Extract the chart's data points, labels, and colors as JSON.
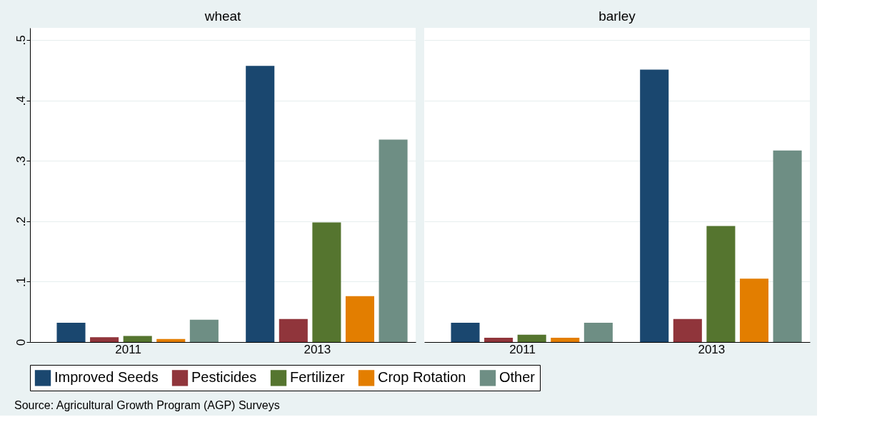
{
  "chart_data": [
    {
      "type": "bar",
      "title": "wheat",
      "categories": [
        "2011",
        "2013"
      ],
      "ylim": [
        0,
        0.52
      ],
      "yticks": [
        0,
        {
          "value": 0.1,
          "label": ".1"
        },
        {
          "value": 0.2,
          "label": ".2"
        },
        {
          "value": 0.3,
          "label": ".3"
        },
        {
          "value": 0.4,
          "label": ".4"
        },
        {
          "value": 0.5,
          "label": ".5"
        }
      ],
      "grid": "y",
      "legend": "bottom",
      "annotations": [
        "Source: Agricultural Growth Program (AGP) Surveys"
      ],
      "series": [
        {
          "name": "Improved Seeds",
          "color": "#1a476f",
          "values": [
            0.032,
            0.457
          ]
        },
        {
          "name": "Pesticides",
          "color": "#90353b",
          "values": [
            0.008,
            0.038
          ]
        },
        {
          "name": "Fertilizer",
          "color": "#55752f",
          "values": [
            0.01,
            0.198
          ]
        },
        {
          "name": "Crop Rotation",
          "color": "#e37e00",
          "values": [
            0.005,
            0.076
          ]
        },
        {
          "name": "Other",
          "color": "#6e8e84",
          "values": [
            0.037,
            0.335
          ]
        }
      ]
    },
    {
      "type": "bar",
      "title": "barley",
      "categories": [
        "2011",
        "2013"
      ],
      "ylim": [
        0,
        0.52
      ],
      "yticks": [
        0,
        0.1,
        0.2,
        0.3,
        0.4,
        0.5
      ],
      "grid": "y",
      "legend": "bottom",
      "tick_labels": "x",
      "series": [
        {
          "name": "Improved Seeds",
          "color": "#1a476f",
          "values": [
            0.032,
            0.451
          ]
        },
        {
          "name": "Pesticides",
          "color": "#90353b",
          "values": [
            0.007,
            0.038
          ]
        },
        {
          "name": "Fertilizer",
          "color": "#55752f",
          "values": [
            0.012,
            0.192
          ]
        },
        {
          "name": "Crop Rotation",
          "color": "#e37e00",
          "values": [
            0.007,
            0.105
          ]
        },
        {
          "name": "Other",
          "color": "#6e8e84",
          "values": [
            0.032,
            0.317
          ]
        }
      ]
    }
  ]
}
